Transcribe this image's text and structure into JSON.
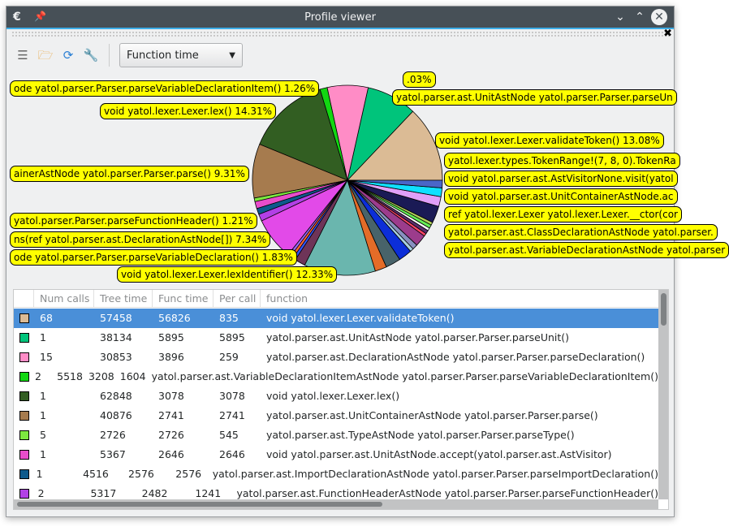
{
  "window": {
    "title": "Profile viewer"
  },
  "toolbar": {
    "metric": "Function time",
    "icons": [
      "document-icon",
      "folder-open-icon",
      "refresh-icon",
      "wrench-icon"
    ]
  },
  "chart_data": {
    "type": "pie",
    "metric": "Tree time",
    "slices": [
      {
        "label": "void yatol.lexer.Lexer.validateToken() 13.08%",
        "value": 13.08,
        "color": "#dbbb95"
      },
      {
        "label": "yatol.parser.ast.UnitAstNode yatol.parser.Parser.parseUn",
        "value": 8.68,
        "color": "#00c47b"
      },
      {
        "label": ".03%",
        "value": 7.03,
        "color": "#ff8cc6"
      },
      {
        "label": "ode yatol.parser.Parser.parseVariableDeclarationItem() 1.26%",
        "value": 1.26,
        "color": "#12d712"
      },
      {
        "label": "void yatol.lexer.Lexer.lex() 14.31%",
        "value": 14.31,
        "color": "#325e22"
      },
      {
        "label": "ainerAstNode yatol.parser.Parser.parse() 9.31%",
        "value": 9.31,
        "color": "#a67b4e"
      },
      {
        "label": "",
        "value": 0.62,
        "color": "#7de840"
      },
      {
        "label": "",
        "value": 1.22,
        "color": "#e94dcb"
      },
      {
        "label": "",
        "value": 1.03,
        "color": "#0e5a8c"
      },
      {
        "label": "yatol.parser.Parser.parseFunctionHeader() 1.21%",
        "value": 1.21,
        "color": "#b240e6"
      },
      {
        "label": "ns(ref yatol.parser.ast.DeclarationAstNode[]) 7.34%",
        "value": 7.34,
        "color": "#e24ae8"
      },
      {
        "label": "",
        "value": 0.5,
        "color": "#9966ff"
      },
      {
        "label": "",
        "value": 0.5,
        "color": "#ff6633"
      },
      {
        "label": "",
        "value": 0.5,
        "color": "#3355ff"
      },
      {
        "label": "ode yatol.parser.Parser.parseVariableDeclaration() 1.83%",
        "value": 1.83,
        "color": "#6e3458"
      },
      {
        "label": "void yatol.lexer.Lexer.lexIdentifier() 12.33%",
        "value": 12.33,
        "color": "#6ab6ae"
      },
      {
        "label": "",
        "value": 2.0,
        "color": "#e46c28"
      },
      {
        "label": "",
        "value": 2.6,
        "color": "#48636a"
      },
      {
        "label": "",
        "value": 2.3,
        "color": "#0c2ed8"
      },
      {
        "label": "",
        "value": 0.6,
        "color": "#a8d0e0"
      },
      {
        "label": "",
        "value": 0.9,
        "color": "#8890c0"
      },
      {
        "label": "",
        "value": 2.0,
        "color": "#9c3c8c"
      },
      {
        "label": "",
        "value": 0.5,
        "color": "#ff4466"
      },
      {
        "label": "",
        "value": 0.6,
        "color": "#5d2d6e"
      },
      {
        "label": "",
        "value": 0.5,
        "color": "#ffffff"
      },
      {
        "label": "",
        "value": 0.6,
        "color": "#66ee55"
      },
      {
        "label": "",
        "value": 0.5,
        "color": "#b5d35c"
      },
      {
        "label": "",
        "value": 2.9,
        "color": "#1a1a55"
      },
      {
        "label": "",
        "value": 1.7,
        "color": "#e0a0f8"
      },
      {
        "label": "",
        "value": 1.5,
        "color": "#10e0ff"
      },
      {
        "label": "yatol.lexer.types.TokenRange!(7, 8, 0).TokenRa",
        "value": 1.3,
        "color": "#4a66c8"
      }
    ],
    "other_labels": [
      "void yatol.parser.ast.AstVisitorNone.visit(yatol",
      "void yatol.parser.ast.UnitContainerAstNode.ac",
      "ref yatol.lexer.Lexer yatol.lexer.Lexer.__ctor(cor",
      "yatol.parser.ast.ClassDeclarationAstNode yatol.parser.",
      "yatol.parser.ast.VariableDeclarationAstNode yatol.parser"
    ]
  },
  "table": {
    "columns": [
      "",
      "Num calls",
      "Tree time",
      "Func time",
      "Per call",
      "function"
    ],
    "rows": [
      {
        "color": "#dbbb95",
        "calls": "68",
        "tree": "57458",
        "func": "56826",
        "per": "835",
        "fn": "void yatol.lexer.Lexer.validateToken()",
        "selected": true
      },
      {
        "color": "#00c47b",
        "calls": "1",
        "tree": "38134",
        "func": "5895",
        "per": "5895",
        "fn": "yatol.parser.ast.UnitAstNode yatol.parser.Parser.parseUnit()"
      },
      {
        "color": "#ff8cc6",
        "calls": "15",
        "tree": "30853",
        "func": "3896",
        "per": "259",
        "fn": "yatol.parser.ast.DeclarationAstNode yatol.parser.Parser.parseDeclaration()"
      },
      {
        "color": "#12d712",
        "calls": "2",
        "tree": "5518",
        "func": "3208",
        "per": "1604",
        "fn": "yatol.parser.ast.VariableDeclarationItemAstNode yatol.parser.Parser.parseVariableDeclarationItem()"
      },
      {
        "color": "#325e22",
        "calls": "1",
        "tree": "62848",
        "func": "3078",
        "per": "3078",
        "fn": "void yatol.lexer.Lexer.lex()"
      },
      {
        "color": "#a67b4e",
        "calls": "1",
        "tree": "40876",
        "func": "2741",
        "per": "2741",
        "fn": "yatol.parser.ast.UnitContainerAstNode yatol.parser.Parser.parse()"
      },
      {
        "color": "#7de840",
        "calls": "5",
        "tree": "2726",
        "func": "2726",
        "per": "545",
        "fn": "yatol.parser.ast.TypeAstNode yatol.parser.Parser.parseType()"
      },
      {
        "color": "#e94dcb",
        "calls": "1",
        "tree": "5367",
        "func": "2646",
        "per": "2646",
        "fn": "void yatol.parser.ast.UnitAstNode.accept(yatol.parser.ast.AstVisitor)"
      },
      {
        "color": "#0e5a8c",
        "calls": "1",
        "tree": "4516",
        "func": "2576",
        "per": "2576",
        "fn": "yatol.parser.ast.ImportDeclarationAstNode yatol.parser.Parser.parseImportDeclaration()"
      },
      {
        "color": "#b240e6",
        "calls": "2",
        "tree": "5317",
        "func": "2482",
        "per": "1241",
        "fn": "yatol.parser.ast.FunctionHeaderAstNode yatol.parser.Parser.parseFunctionHeader()"
      }
    ]
  }
}
